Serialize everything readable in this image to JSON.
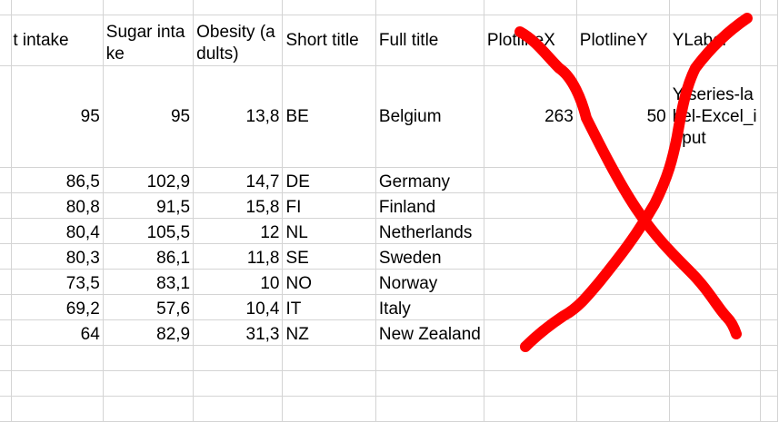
{
  "headers": [
    "t intake",
    "Sugar intake",
    "Obesity (adults)",
    "Short title",
    "Full title",
    "PlotlineX",
    "PlotlineY",
    "YLabel"
  ],
  "rows": [
    {
      "fat": "95",
      "sugar": "95",
      "obesity": "13,8",
      "short": "BE",
      "full": "Belgium",
      "plotx": "263",
      "ploty": "50",
      "ylabel": "Y-series-label-Excel_input"
    },
    {
      "fat": "86,5",
      "sugar": "102,9",
      "obesity": "14,7",
      "short": "DE",
      "full": "Germany"
    },
    {
      "fat": "80,8",
      "sugar": "91,5",
      "obesity": "15,8",
      "short": "FI",
      "full": "Finland"
    },
    {
      "fat": "80,4",
      "sugar": "105,5",
      "obesity": "12",
      "short": "NL",
      "full": "Netherlands"
    },
    {
      "fat": "80,3",
      "sugar": "86,1",
      "obesity": "11,8",
      "short": "SE",
      "full": "Sweden"
    },
    {
      "fat": "73,5",
      "sugar": "83,1",
      "obesity": "10",
      "short": "NO",
      "full": "Norway"
    },
    {
      "fat": "69,2",
      "sugar": "57,6",
      "obesity": "10,4",
      "short": "IT",
      "full": "Italy"
    },
    {
      "fat": "64",
      "sugar": "82,9",
      "obesity": "31,3",
      "short": "NZ",
      "full": "New Zealand"
    }
  ],
  "annotation_color": "#ff0000"
}
